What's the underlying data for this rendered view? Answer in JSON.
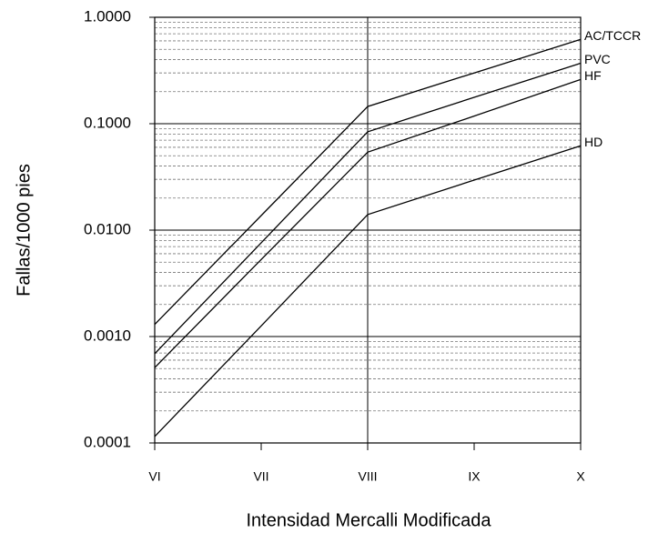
{
  "chart_data": {
    "type": "line",
    "y_label": "Fallas/1000 pies",
    "x_label": "Intensidad Mercalli Modificada",
    "categories": [
      "VI",
      "VII",
      "VIII",
      "IX",
      "X"
    ],
    "log_y": true,
    "grid": true,
    "ylim": [
      0.0001,
      1
    ],
    "yticks": [
      {
        "value": 1,
        "label": "1.0000"
      },
      {
        "value": 0.1,
        "label": "0.1000"
      },
      {
        "value": 0.01,
        "label": "0.0100"
      },
      {
        "value": 0.001,
        "label": "0.0010"
      },
      {
        "value": 0.0001,
        "label": "0.0001"
      }
    ],
    "yminorticks": [
      0.0002,
      0.0003,
      0.0004,
      0.0005,
      0.0006,
      0.0007,
      0.0008,
      0.0009,
      0.002,
      0.003,
      0.004,
      0.005,
      0.006,
      0.007,
      0.008,
      0.009,
      0.02,
      0.03,
      0.04,
      0.05,
      0.06,
      0.07,
      0.08,
      0.09,
      0.2,
      0.3,
      0.4,
      0.5,
      0.6,
      0.7,
      0.8,
      0.9
    ],
    "series": [
      {
        "name": "AC/TCCR",
        "color": "#000000",
        "values": [
          0.0013,
          0.0137,
          0.145,
          0.3,
          0.62
        ]
      },
      {
        "name": "PVC",
        "color": "#000000",
        "values": [
          0.00069,
          0.0076,
          0.084,
          0.177,
          0.37
        ]
      },
      {
        "name": "HF",
        "color": "#000000",
        "values": [
          0.00051,
          0.0053,
          0.054,
          0.118,
          0.26
        ]
      },
      {
        "name": "HD",
        "color": "#000000",
        "values": [
          0.000115,
          0.00126,
          0.014,
          0.0295,
          0.062
        ]
      }
    ]
  }
}
